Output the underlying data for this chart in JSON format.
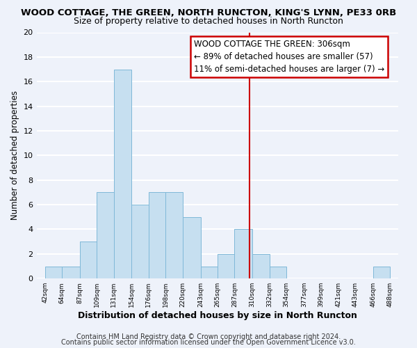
{
  "title": "WOOD COTTAGE, THE GREEN, NORTH RUNCTON, KING'S LYNN, PE33 0RB",
  "subtitle": "Size of property relative to detached houses in North Runcton",
  "xlabel": "Distribution of detached houses by size in North Runcton",
  "ylabel": "Number of detached properties",
  "bin_edges": [
    42,
    64,
    87,
    109,
    131,
    154,
    176,
    198,
    220,
    243,
    265,
    287,
    310,
    332,
    354,
    377,
    399,
    421,
    443,
    466,
    488
  ],
  "bin_heights": [
    1,
    1,
    3,
    7,
    17,
    6,
    7,
    7,
    5,
    1,
    2,
    4,
    2,
    1,
    0,
    0,
    0,
    0,
    0,
    1
  ],
  "bar_color": "#c6dff0",
  "bar_edge_color": "#7fb8d8",
  "vline_x": 306,
  "vline_color": "#cc0000",
  "ylim": [
    0,
    20
  ],
  "annotation_title": "WOOD COTTAGE THE GREEN: 306sqm",
  "annotation_line1": "← 89% of detached houses are smaller (57)",
  "annotation_line2": "11% of semi-detached houses are larger (7) →",
  "tick_labels": [
    "42sqm",
    "64sqm",
    "87sqm",
    "109sqm",
    "131sqm",
    "154sqm",
    "176sqm",
    "198sqm",
    "220sqm",
    "243sqm",
    "265sqm",
    "287sqm",
    "310sqm",
    "332sqm",
    "354sqm",
    "377sqm",
    "399sqm",
    "421sqm",
    "443sqm",
    "466sqm",
    "488sqm"
  ],
  "footer1": "Contains HM Land Registry data © Crown copyright and database right 2024.",
  "footer2": "Contains public sector information licensed under the Open Government Licence v3.0.",
  "background_color": "#eef2fa",
  "grid_color": "#ffffff",
  "title_fontsize": 9.5,
  "subtitle_fontsize": 9,
  "xlabel_fontsize": 9,
  "ylabel_fontsize": 8.5,
  "footer_fontsize": 7,
  "annotation_fontsize": 8.5
}
